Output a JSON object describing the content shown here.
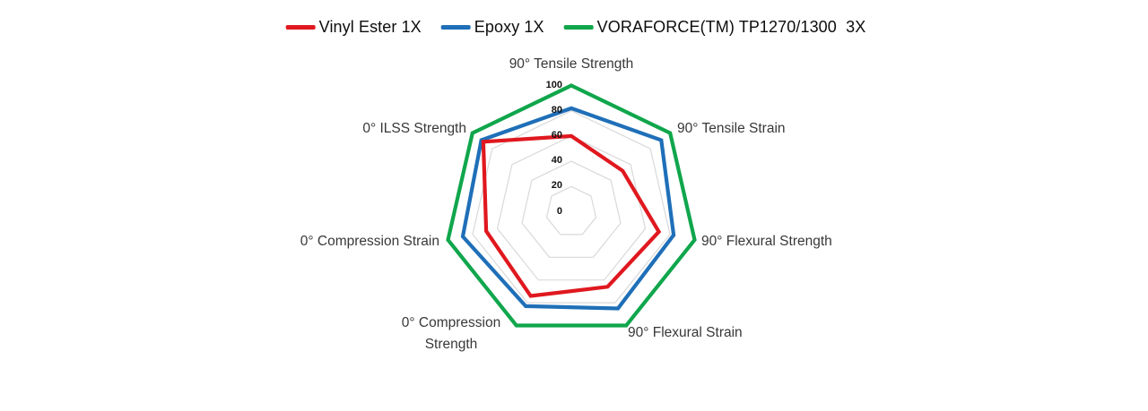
{
  "chart_data": {
    "type": "radar",
    "title": "",
    "categories": [
      "90° Tensile Strength",
      "90° Tensile Strain",
      "90° Flexural Strength",
      "90° Flexural Strain",
      "0° Compression Strength",
      "0° Compression Strain",
      "0° ILSS Strength"
    ],
    "series": [
      {
        "name": "Vinyl Ester 1X",
        "color": "#e0181f",
        "values": [
          60,
          52,
          71,
          66,
          74,
          69,
          89
        ]
      },
      {
        "name": "Epoxy 1X",
        "color": "#1f6fb8",
        "values": [
          82,
          91,
          83,
          85,
          83,
          88,
          91
        ]
      },
      {
        "name": "VORAFORCE(TM) TP1270/1300  3X",
        "color": "#10a64c",
        "values": [
          100,
          100,
          100,
          100,
          100,
          100,
          100
        ]
      }
    ],
    "radial_ticks": [
      0,
      20,
      40,
      60,
      80,
      100
    ],
    "rmin": 0,
    "rmax": 100,
    "grid": true,
    "gridline_color": "#d9d9d9",
    "legend_position": "top",
    "background_color": "#ffffff"
  }
}
